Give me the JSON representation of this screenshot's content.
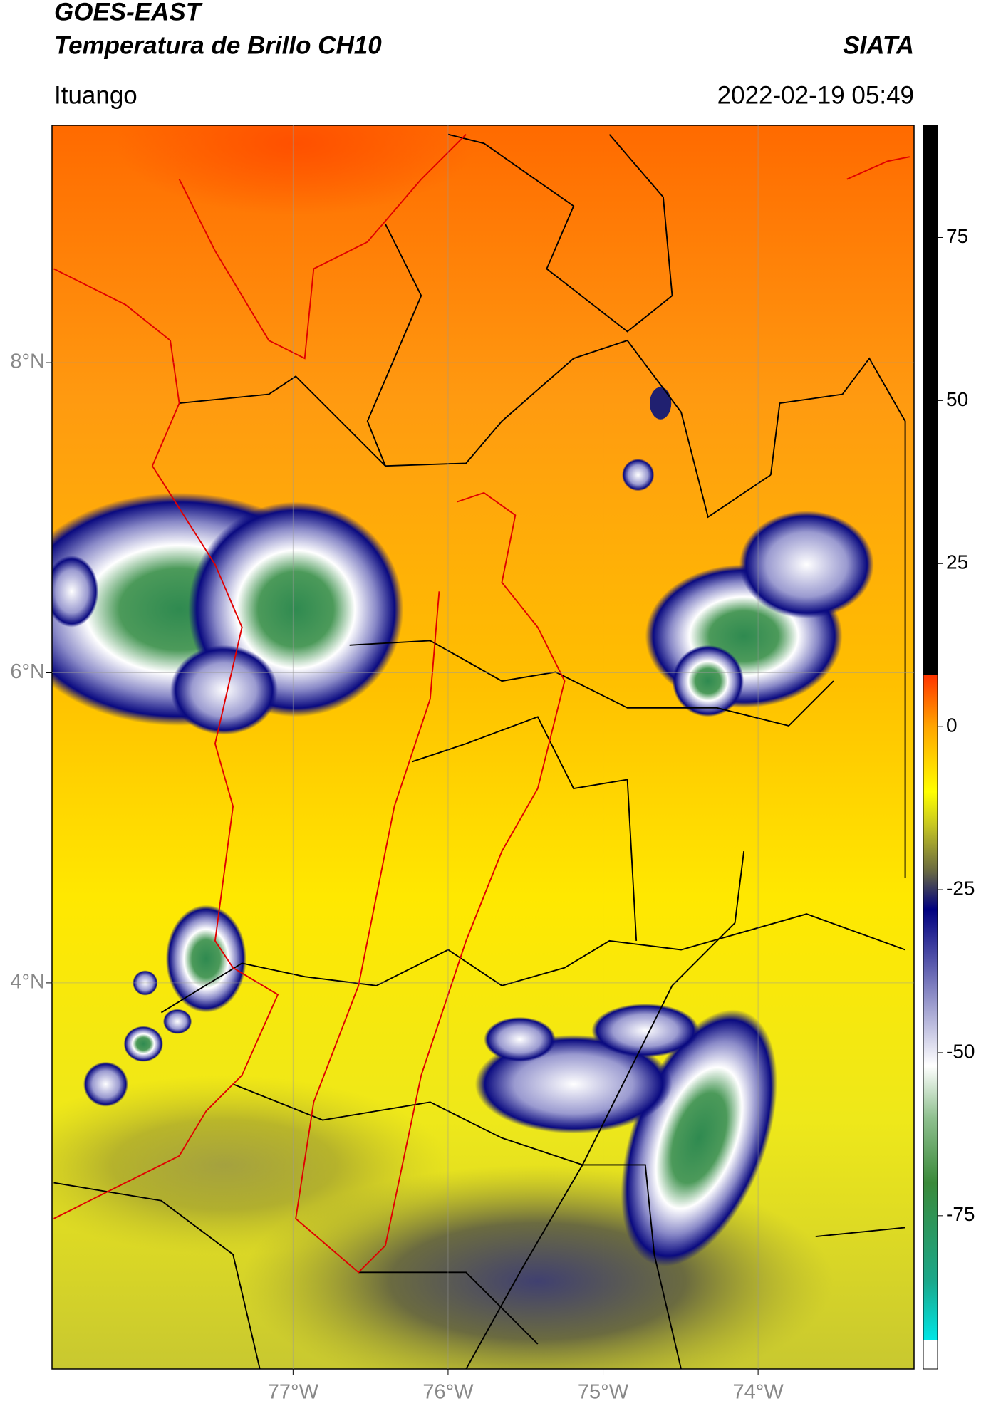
{
  "header": {
    "title": "GOES-EAST",
    "subtitle": "Temperatura de Brillo CH10",
    "source": "SIATA",
    "location": "Ituango",
    "datetime": "2022-02-19 05:49"
  },
  "map": {
    "xlim": [
      -78.555,
      -72.994
    ],
    "ylim": [
      1.51,
      9.53
    ],
    "xticks": [
      {
        "value": -77,
        "label": "77°W"
      },
      {
        "value": -76,
        "label": "76°W"
      },
      {
        "value": -75,
        "label": "75°W"
      },
      {
        "value": -74,
        "label": "74°W"
      }
    ],
    "yticks": [
      {
        "value": 8,
        "label": "8°N"
      },
      {
        "value": 6,
        "label": "6°N"
      },
      {
        "value": 4,
        "label": "4°N"
      }
    ],
    "grid": true
  },
  "colorbar": {
    "lim": [
      -98.5,
      92.2
    ],
    "ticks": [
      75,
      50,
      25,
      0,
      -25,
      -50,
      -75
    ],
    "colormap": [
      {
        "value": -98.5,
        "color": "#ffffff"
      },
      {
        "value": -94,
        "color": "#ffffff"
      },
      {
        "value": -94,
        "color": "#00e5e5"
      },
      {
        "value": -85,
        "color": "#1aa88a"
      },
      {
        "value": -70,
        "color": "#3a8a3a"
      },
      {
        "value": -60,
        "color": "#8fc08f"
      },
      {
        "value": -52,
        "color": "#ffffff"
      },
      {
        "value": -40,
        "color": "#8080c0"
      },
      {
        "value": -28,
        "color": "#000080"
      },
      {
        "value": -22,
        "color": "#6b6b40"
      },
      {
        "value": -15,
        "color": "#c8c820"
      },
      {
        "value": -10,
        "color": "#ffff00"
      },
      {
        "value": 0,
        "color": "#ffa500"
      },
      {
        "value": 8,
        "color": "#ff3300"
      },
      {
        "value": 8,
        "color": "#000000"
      },
      {
        "value": 92.2,
        "color": "#000000"
      }
    ]
  }
}
